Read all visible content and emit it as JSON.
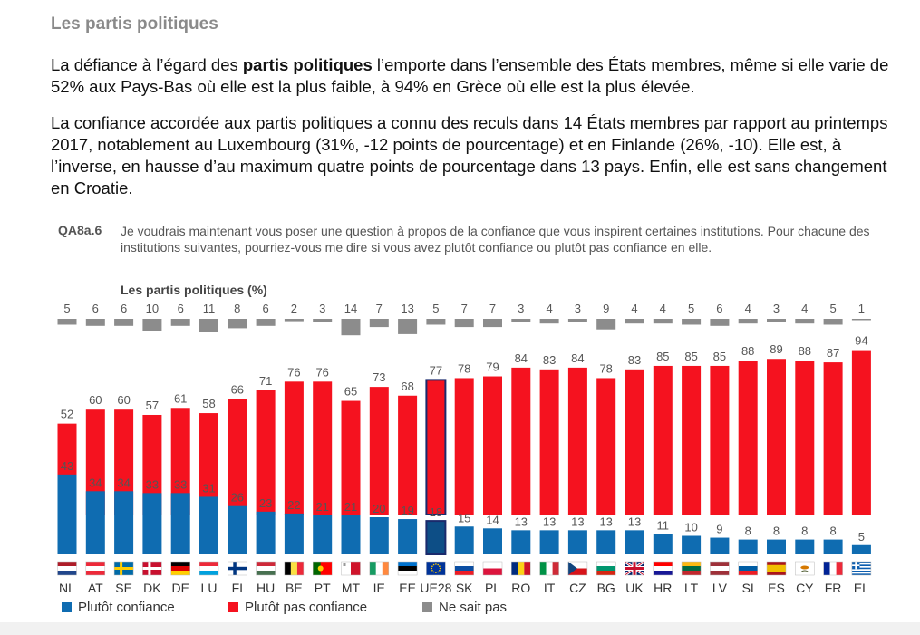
{
  "header": {
    "section_title": "Les partis politiques",
    "p1_before": "La défiance à l’égard des ",
    "p1_bold": "partis politiques",
    "p1_after": " l’emporte dans l’ensemble des États membres, même si elle varie de 52% aux Pays-Bas où elle est la plus faible, à 94% en Grèce où elle est la plus élevée.",
    "p2": "La confiance accordée aux partis politiques a connu des reculs dans 14 États membres par rapport au printemps 2017, notablement au Luxembourg (31%, -12 points de pourcentage) et en Finlande (26%, -10). Elle est, à l’inverse, en hausse d’au maximum quatre points de pourcentage dans 13 pays. Enfin, elle est sans changement en Croatie."
  },
  "question": {
    "code": "QA8a.6",
    "text": "Je voudrais maintenant vous poser une question à propos de la confiance que vous inspirent certaines institutions. Pour chacune des institutions suivantes, pourriez-vous me dire si vous avez plutôt confiance ou plutôt pas confiance en elle."
  },
  "chart_data": {
    "type": "bar",
    "title": "Les partis politiques (%)",
    "categories": [
      "NL",
      "AT",
      "SE",
      "DK",
      "DE",
      "LU",
      "FI",
      "HU",
      "BE",
      "PT",
      "MT",
      "IE",
      "EE",
      "UE28",
      "SK",
      "PL",
      "RO",
      "IT",
      "CZ",
      "BG",
      "UK",
      "HR",
      "LT",
      "LV",
      "SI",
      "ES",
      "CY",
      "FR",
      "EL"
    ],
    "highlight_category": "UE28",
    "series": [
      {
        "name": "Plutôt confiance",
        "color": "#0f6cb1",
        "values": [
          43,
          34,
          34,
          33,
          33,
          31,
          26,
          23,
          22,
          21,
          21,
          20,
          19,
          18,
          15,
          14,
          13,
          13,
          13,
          13,
          13,
          11,
          10,
          9,
          8,
          8,
          8,
          8,
          5
        ]
      },
      {
        "name": "Plutôt pas confiance",
        "color": "#f5121f",
        "values": [
          52,
          60,
          60,
          57,
          61,
          58,
          66,
          71,
          76,
          76,
          65,
          73,
          68,
          77,
          78,
          79,
          84,
          83,
          84,
          78,
          83,
          85,
          85,
          85,
          88,
          89,
          88,
          87,
          94
        ]
      },
      {
        "name": "Ne sait pas",
        "color": "#8c8c8c",
        "values": [
          5,
          6,
          6,
          10,
          6,
          11,
          8,
          6,
          2,
          3,
          14,
          7,
          13,
          5,
          7,
          7,
          3,
          4,
          3,
          9,
          4,
          4,
          5,
          6,
          4,
          3,
          4,
          5,
          1
        ]
      }
    ],
    "legend_position": "bottom-left",
    "grid": false
  },
  "flags": {
    "NL": [
      "#ae1c28",
      "#ffffff",
      "#21468b"
    ],
    "AT": [
      "#ed2939",
      "#ffffff",
      "#ed2939"
    ],
    "SE": "SE",
    "DK": "DK",
    "DE": [
      "#000000",
      "#dd0000",
      "#ffce00"
    ],
    "LU": [
      "#ed2939",
      "#ffffff",
      "#00a1de"
    ],
    "FI": "FI",
    "HU": [
      "#ce2939",
      "#ffffff",
      "#477050"
    ],
    "BE": [
      "#000000",
      "#fae042",
      "#ed2939"
    ],
    "PT": "PT",
    "MT": "MT",
    "IE": [
      "#169b62",
      "#ffffff",
      "#ff883e"
    ],
    "EE": [
      "#0072ce",
      "#000000",
      "#ffffff"
    ],
    "UE28": "EU",
    "SK": [
      "#ffffff",
      "#0b4ea2",
      "#ee1c25"
    ],
    "PL": [
      "#ffffff",
      "#dc143c"
    ],
    "RO": [
      "#002b7f",
      "#fcd116",
      "#ce1126"
    ],
    "IT": [
      "#009246",
      "#ffffff",
      "#ce2b37"
    ],
    "CZ": "CZ",
    "BG": [
      "#ffffff",
      "#00966e",
      "#d62612"
    ],
    "UK": "UK",
    "HR": [
      "#ff0000",
      "#ffffff",
      "#171796"
    ],
    "LT": [
      "#fdb913",
      "#006a44",
      "#c1272d"
    ],
    "LV": [
      "#9e3039",
      "#ffffff",
      "#9e3039"
    ],
    "SI": [
      "#ffffff",
      "#005da4",
      "#ed1c24"
    ],
    "ES": [
      "#aa151b",
      "#f1bf00",
      "#f1bf00",
      "#aa151b"
    ],
    "CY": "CY",
    "FR": [
      "#002395",
      "#ffffff",
      "#ed2939"
    ],
    "EL": "EL"
  },
  "flag_orientation": {
    "NL": "h",
    "AT": "h",
    "DE": "h",
    "LU": "h",
    "HU": "h",
    "BE": "v",
    "IE": "v",
    "EE": "h",
    "SK": "h",
    "PL": "h",
    "RO": "v",
    "IT": "v",
    "BG": "h",
    "HR": "h",
    "LT": "h",
    "LV": "h",
    "SI": "h",
    "ES": "h",
    "FR": "v"
  }
}
